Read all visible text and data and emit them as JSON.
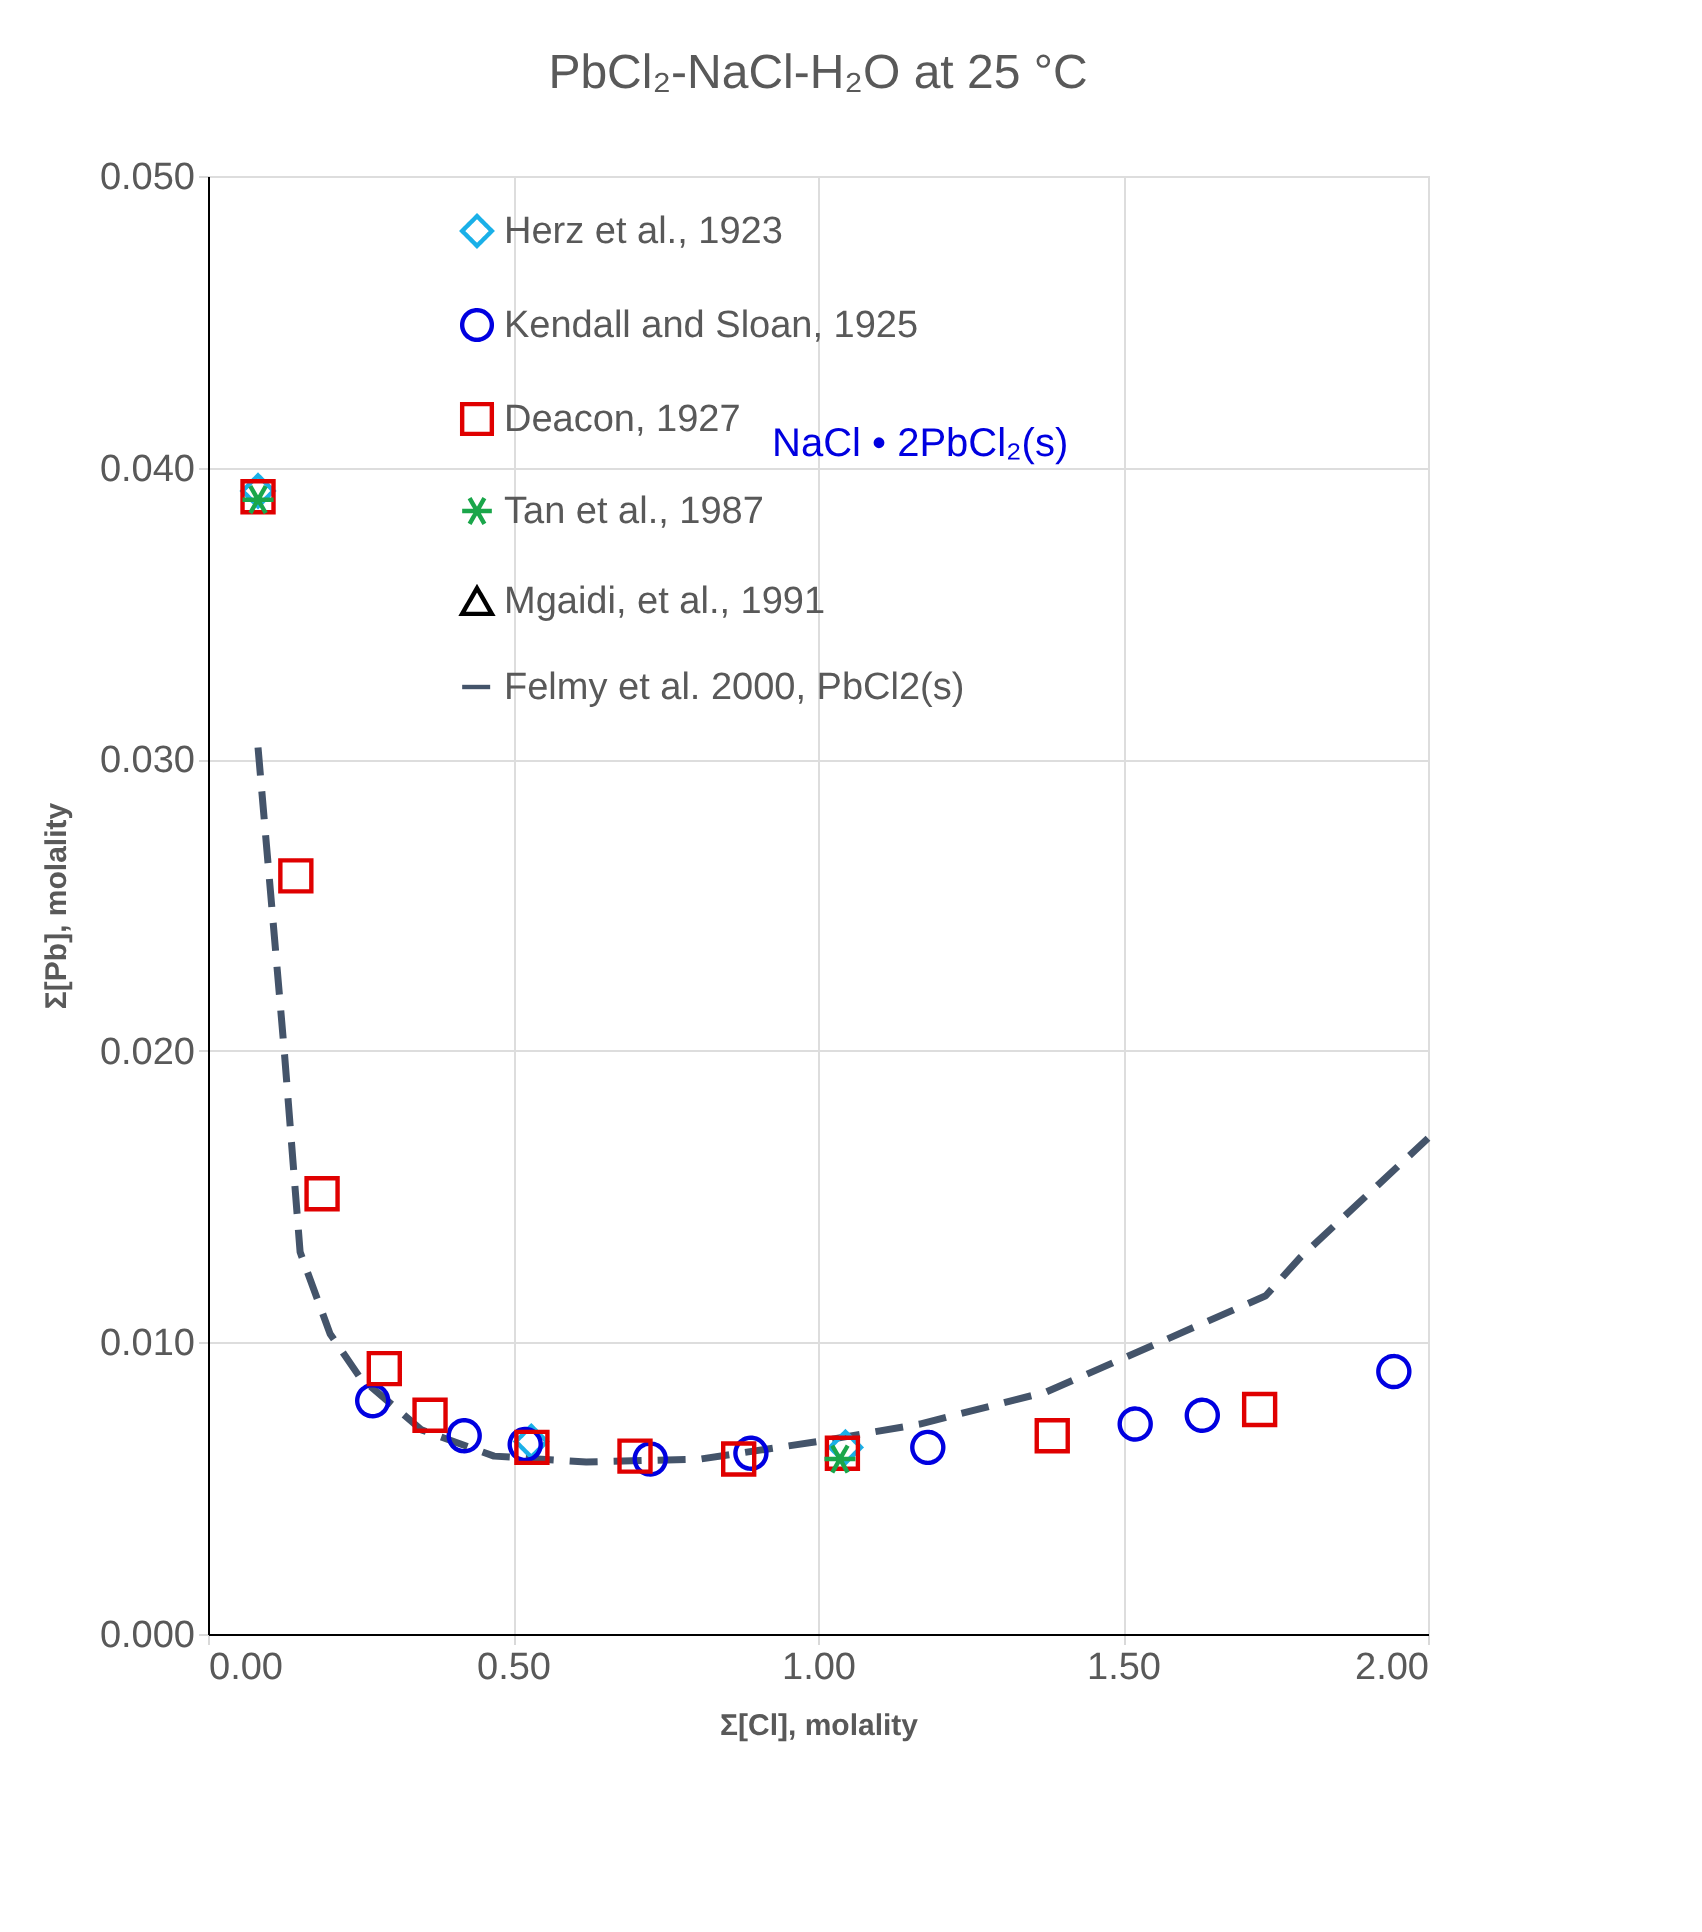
{
  "chart_data": {
    "type": "scatter",
    "title": "PbCl₂-NaCl-H₂O at 25 °C",
    "xlabel": "Σ[Cl], molality",
    "ylabel": "Σ[Pb], molality",
    "xlim": [
      0,
      2
    ],
    "xticks": [
      {
        "value": 0,
        "label": "0.00"
      },
      {
        "value": 0.5,
        "label": "0.50"
      },
      {
        "value": 1,
        "label": "1.00"
      },
      {
        "value": 1.5,
        "label": "1.50"
      },
      {
        "value": 2,
        "label": "2.00"
      }
    ],
    "ylim": [
      0,
      0.05
    ],
    "yticks": [
      {
        "value": 0,
        "label": "0.000"
      },
      {
        "value": 0.01,
        "label": "0.010"
      },
      {
        "value": 0.02,
        "label": "0.020"
      },
      {
        "value": 0.03,
        "label": "0.030"
      },
      {
        "value": 0.04,
        "label": "0.040"
      },
      {
        "value": 0.05,
        "label": "0.050"
      }
    ],
    "grid": true,
    "legend": "top",
    "annotations": [
      "NaCl • 2PbCl₂(s)"
    ],
    "series": [
      {
        "name": "Herz et al., 1923",
        "color": "#1ab0e8",
        "marker": "diamond",
        "x": [
          0.082,
          0.53,
          1.045
        ],
        "values": [
          0.0392,
          0.0066,
          0.0064
        ]
      },
      {
        "name": "Kendall and Sloan, 1925",
        "color": "#0000e0",
        "marker": "circle",
        "x": [
          0.27,
          0.42,
          0.52,
          0.725,
          0.89,
          1.18,
          1.52,
          1.63,
          1.944
        ],
        "values": [
          0.008,
          0.0068,
          0.0065,
          0.006,
          0.0062,
          0.0064,
          0.0072,
          0.0075,
          0.009
        ]
      },
      {
        "name": "Deacon, 1927",
        "color": "#e00000",
        "marker": "square",
        "x": [
          0.082,
          0.144,
          0.187,
          0.289,
          0.364,
          0.531,
          0.7,
          0.87,
          1.04,
          1.384,
          1.724
        ],
        "values": [
          0.039,
          0.026,
          0.0151,
          0.0091,
          0.0075,
          0.0064,
          0.0061,
          0.006,
          0.0062,
          0.0068,
          0.0077
        ]
      },
      {
        "name": "Tan et al., 1987",
        "color": "#1aa64a",
        "marker": "cross",
        "x": [
          0.082,
          1.036
        ],
        "values": [
          0.0389,
          0.006
        ]
      },
      {
        "name": "Mgaidi, et al., 1991",
        "color": "#000000",
        "marker": "triangle"
      },
      {
        "name": "Felmy et al. 2000, PbCl2(s)",
        "color": "#44546a",
        "type": "line",
        "line_style": "dashed",
        "marker": "none",
        "x": [
          0.082,
          0.125,
          0.151,
          0.2,
          0.249,
          0.35,
          0.469,
          0.62,
          0.807,
          1.0,
          1.167,
          1.374,
          1.56,
          1.734,
          1.79,
          2.0
        ],
        "values": [
          0.0304,
          0.02,
          0.0131,
          0.0103,
          0.0088,
          0.007,
          0.0061,
          0.0059,
          0.006,
          0.0066,
          0.0072,
          0.0083,
          0.01,
          0.0116,
          0.0129,
          0.017
        ]
      }
    ]
  }
}
